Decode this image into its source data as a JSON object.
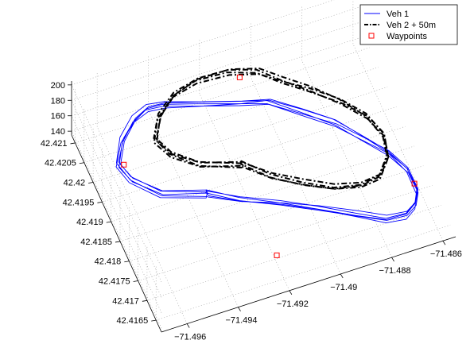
{
  "chart_data": {
    "type": "line",
    "title": "",
    "xlabel": "",
    "ylabel": "",
    "zlabel": "",
    "grid": true,
    "legend_position": "top-right",
    "x_ticks": [
      "-71.496",
      "-71.494",
      "-71.492",
      "-71.49",
      "-71.488",
      "-71.486"
    ],
    "y_ticks": [
      "42.4165",
      "42.417",
      "42.4175",
      "42.418",
      "42.4185",
      "42.419",
      "42.4195",
      "42.42",
      "42.4205",
      "42.421"
    ],
    "z_ticks": [
      "140",
      "160",
      "180",
      "200"
    ],
    "xlim": [
      -71.497,
      -71.4855
    ],
    "ylim": [
      42.4162,
      42.4212
    ],
    "series": [
      {
        "name": "Veh 1",
        "color": "#0000ff",
        "style": "solid",
        "laps": 5,
        "x": [
          -71.4935,
          -71.495,
          -71.4958,
          -71.496,
          -71.4955,
          -71.4948,
          -71.4942,
          -71.4936,
          -71.4925,
          -71.491,
          -71.49,
          -71.489,
          -71.488,
          -71.4873,
          -71.4866,
          -71.4862,
          -71.4862,
          -71.4865,
          -71.487,
          -71.4878,
          -71.4888,
          -71.49,
          -71.4912,
          -71.4925,
          -71.4935
        ],
        "y": [
          42.4187,
          42.419,
          42.4195,
          42.4199,
          42.4204,
          42.4208,
          42.421,
          42.421,
          42.4208,
          42.4205,
          42.4203,
          42.4198,
          42.4193,
          42.4188,
          42.4183,
          42.4178,
          42.4173,
          42.417,
          42.4168,
          42.4168,
          42.4171,
          42.4175,
          42.4179,
          42.4183,
          42.4187
        ]
      },
      {
        "name": "Veh 2 + 50m",
        "color": "#000000",
        "style": "dash-dot",
        "laps": 4,
        "x": [
          -71.492,
          -71.4934,
          -71.4942,
          -71.4945,
          -71.494,
          -71.4932,
          -71.4922,
          -71.491,
          -71.49,
          -71.4893,
          -71.4885,
          -71.4876,
          -71.4869,
          -71.4866,
          -71.4868,
          -71.4874,
          -71.4882,
          -71.4892,
          -71.4902,
          -71.4912,
          -71.492
        ],
        "y": [
          42.4189,
          42.4192,
          42.4196,
          42.42,
          42.4205,
          42.4209,
          42.4211,
          42.4211,
          42.4209,
          42.4205,
          42.4201,
          42.4196,
          42.4191,
          42.4186,
          42.4181,
          42.4177,
          42.4176,
          42.4177,
          42.418,
          42.4184,
          42.4189
        ]
      },
      {
        "name": "Waypoints",
        "color": "#ff0000",
        "style": "square-marker",
        "x": [
          -71.4958,
          -71.4905,
          -71.4862,
          -71.492
        ],
        "y": [
          42.42,
          42.4211,
          42.4175,
          42.4169
        ]
      }
    ]
  }
}
